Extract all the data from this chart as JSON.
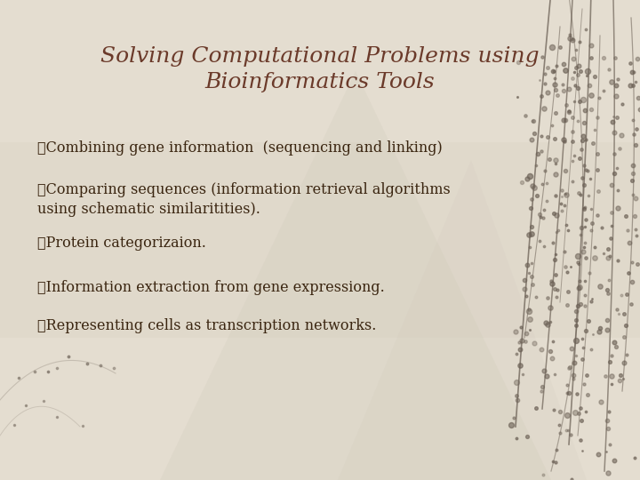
{
  "title_line1": "Solving Computational Problems using",
  "title_line2": "Bioinformatics Tools",
  "title_color": "#6B3A2A",
  "title_fontsize": 18,
  "bullet_items": [
    "✓Combining gene information  (sequencing and linking)",
    "✓Comparing sequences (information retrieval algorithms\nusing schematic similaritities).",
    "✓Protein categorizaion.",
    "✓Information extraction from gene expressiong.",
    "✓Representing cells as transcription networks."
  ],
  "bullet_color": "#3A2510",
  "bullet_fontsize": 11.5,
  "bg_color": "#E4DDD0",
  "branch_color": "#6B6055",
  "dot_color": "#6B6055",
  "fig_width": 7.2,
  "fig_height": 5.4
}
